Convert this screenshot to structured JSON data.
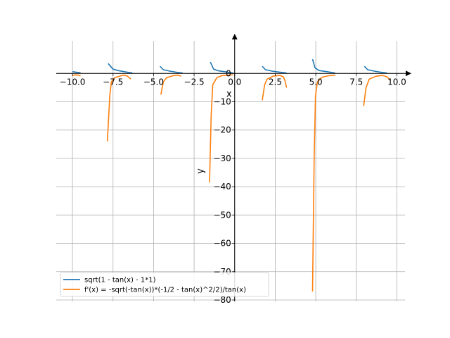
{
  "chart_data": {
    "type": "line",
    "xlabel": "x",
    "ylabel": "y",
    "xlim": [
      -11.0,
      10.5
    ],
    "ylim": [
      -80.5,
      11.5
    ],
    "grid": true,
    "legend_position": "lower-left",
    "x_ticks": [
      -10.0,
      -7.5,
      -5.0,
      -2.5,
      0.0,
      2.5,
      5.0,
      7.5,
      10.0
    ],
    "x_tick_labels": [
      "−10.0",
      "−7.5",
      "−5.0",
      "−2.5",
      "0.0",
      "2.5",
      "5.0",
      "7.5",
      "10.0"
    ],
    "y_ticks": [
      0,
      -10,
      -20,
      -30,
      -40,
      -50,
      -60,
      -70,
      -80
    ],
    "y_tick_labels": [
      "0",
      "−10",
      "−20",
      "−30",
      "−40",
      "−50",
      "−60",
      "−70",
      "−80"
    ],
    "series": [
      {
        "name": "sqrt(1 - tan(x) - 1*1)",
        "color": "#1f77b4",
        "segments": [
          [
            [
              -10.0,
              0.6
            ],
            [
              -9.5,
              0.2
            ]
          ],
          [
            [
              -7.8,
              3.5
            ],
            [
              -7.5,
              1.5
            ],
            [
              -7.2,
              1.0
            ],
            [
              -6.8,
              0.6
            ],
            [
              -6.3,
              0.1
            ]
          ],
          [
            [
              -4.6,
              2.5
            ],
            [
              -4.4,
              1.3
            ],
            [
              -4.0,
              0.8
            ],
            [
              -3.6,
              0.4
            ],
            [
              -3.2,
              0.1
            ]
          ],
          [
            [
              -1.5,
              4.0
            ],
            [
              -1.3,
              1.5
            ],
            [
              -1.0,
              0.9
            ],
            [
              -0.5,
              0.5
            ],
            [
              -0.1,
              0.1
            ]
          ],
          [
            [
              1.7,
              2.5
            ],
            [
              1.9,
              1.3
            ],
            [
              2.3,
              0.8
            ],
            [
              2.8,
              0.4
            ],
            [
              3.2,
              0.1
            ]
          ],
          [
            [
              4.8,
              5.0
            ],
            [
              4.95,
              2.0
            ],
            [
              5.2,
              1.0
            ],
            [
              5.7,
              0.6
            ],
            [
              6.2,
              0.1
            ]
          ],
          [
            [
              8.0,
              2.5
            ],
            [
              8.2,
              1.3
            ],
            [
              8.6,
              0.8
            ],
            [
              9.0,
              0.4
            ],
            [
              9.4,
              0.1
            ]
          ]
        ]
      },
      {
        "name": "f'(x) = -sqrt(-tan(x))*(-1/2 - tan(x)^2/2)/tan(x)",
        "color": "#ff7f0e",
        "segments": [
          [
            [
              -10.0,
              -0.7
            ],
            [
              -9.8,
              -0.5
            ],
            [
              -9.5,
              -0.7
            ]
          ],
          [
            [
              -7.85,
              -24.0
            ],
            [
              -7.7,
              -8.0
            ],
            [
              -7.6,
              -3.0
            ],
            [
              -7.4,
              -1.5
            ],
            [
              -7.0,
              -0.8
            ],
            [
              -6.8,
              -0.6
            ],
            [
              -6.6,
              -1.0
            ],
            [
              -6.4,
              -2.0
            ]
          ],
          [
            [
              -4.55,
              -7.5
            ],
            [
              -4.4,
              -3.0
            ],
            [
              -4.2,
              -1.5
            ],
            [
              -3.8,
              -0.8
            ],
            [
              -3.5,
              -0.6
            ],
            [
              -3.3,
              -1.0
            ]
          ],
          [
            [
              -1.55,
              -38.5
            ],
            [
              -1.45,
              -15.0
            ],
            [
              -1.35,
              -4.0
            ],
            [
              -1.1,
              -1.5
            ],
            [
              -0.8,
              -0.8
            ],
            [
              -0.4,
              -0.6
            ],
            [
              -0.1,
              -0.5
            ]
          ],
          [
            [
              1.7,
              -9.5
            ],
            [
              1.85,
              -4.0
            ],
            [
              2.0,
              -2.0
            ],
            [
              2.4,
              -0.9
            ],
            [
              2.8,
              -0.7
            ],
            [
              3.0,
              -1.2
            ],
            [
              3.1,
              -2.5
            ],
            [
              3.2,
              -5.0
            ]
          ],
          [
            [
              4.8,
              -77.0
            ],
            [
              4.9,
              -30.0
            ],
            [
              4.98,
              -8.0
            ],
            [
              5.1,
              -3.0
            ],
            [
              5.4,
              -1.3
            ],
            [
              5.8,
              -0.8
            ],
            [
              6.2,
              -0.6
            ]
          ],
          [
            [
              7.95,
              -11.5
            ],
            [
              8.1,
              -5.0
            ],
            [
              8.3,
              -2.0
            ],
            [
              8.7,
              -1.0
            ],
            [
              9.1,
              -0.7
            ],
            [
              9.4,
              -1.2
            ],
            [
              9.6,
              -2.5
            ]
          ]
        ]
      }
    ]
  }
}
